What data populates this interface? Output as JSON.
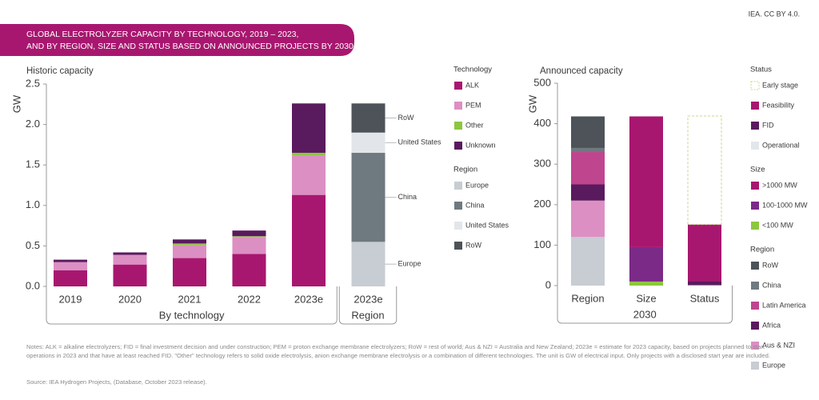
{
  "header": {
    "credit": "IEA. CC BY 4.0.",
    "title_lines": [
      "GLOBAL ELECTROLYZER CAPACITY BY TECHNOLOGY, 2019 – 2023,",
      "AND BY REGION, SIZE AND STATUS BASED ON ANNOUNCED PROJECTS BY 2030"
    ]
  },
  "chart_data": [
    {
      "type": "stacked-bar",
      "title": "Historic capacity",
      "y_label": "GW",
      "ylim": [
        0,
        2.5
      ],
      "yticks": [
        {
          "value": 0,
          "label": "0.0"
        },
        0.5,
        {
          "value": 1,
          "label": "1.0"
        },
        1.5,
        {
          "value": 2,
          "label": "2.0"
        },
        2.5
      ],
      "categories": [
        "2019",
        "2020",
        "2021",
        "2022",
        "2023e",
        "2023e"
      ],
      "x_groups": [
        {
          "label": "By technology",
          "count": 5
        },
        {
          "label": "Region",
          "count": 1
        }
      ],
      "stack_order": "normal",
      "series_groups": [
        {
          "name": "Technology",
          "series": [
            {
              "name": "ALK",
              "color": "#a8176f",
              "values": [
                0.2,
                0.27,
                0.35,
                0.4,
                1.13,
                null
              ]
            },
            {
              "name": "PEM",
              "color": "#dc8fc3",
              "values": [
                0.1,
                0.12,
                0.16,
                0.21,
                0.49,
                null
              ]
            },
            {
              "name": "Other",
              "color": "#8dc63f",
              "values": [
                0,
                0,
                0.02,
                0.01,
                0.03,
                null
              ]
            },
            {
              "name": "Unknown",
              "color": "#5a1a5e",
              "values": [
                0.03,
                0.03,
                0.05,
                0.07,
                0.61,
                null
              ]
            }
          ]
        },
        {
          "name": "Region",
          "inline_labels": true,
          "series": [
            {
              "name": "Europe",
              "color": "#c8ccd3",
              "values": [
                null,
                null,
                null,
                null,
                null,
                0.55
              ]
            },
            {
              "name": "China",
              "color": "#6f7a80",
              "values": [
                null,
                null,
                null,
                null,
                null,
                1.1
              ]
            },
            {
              "name": "United States",
              "color": "#e2e6ea",
              "values": [
                null,
                null,
                null,
                null,
                null,
                0.25
              ]
            },
            {
              "name": "RoW",
              "color": "#4d5359",
              "values": [
                null,
                null,
                null,
                null,
                null,
                0.36
              ]
            }
          ]
        }
      ]
    },
    {
      "type": "stacked-bar",
      "title": "Announced capacity",
      "y_label": "GW",
      "ylim": [
        0,
        500
      ],
      "yticks": [
        0,
        100,
        200,
        300,
        400,
        500
      ],
      "categories": [
        "Region",
        "Size",
        "Status"
      ],
      "x_groups": [
        {
          "label": "2030",
          "count": 3
        }
      ],
      "stack_order": "reverse",
      "series_groups": [
        {
          "name": "Status",
          "series": [
            {
              "name": "Early stage",
              "color": "#c5d98a",
              "pattern": "dashed",
              "values": [
                null,
                null,
                268
              ]
            },
            {
              "name": "Feasibility",
              "color": "#a8176f",
              "values": [
                null,
                null,
                140
              ]
            },
            {
              "name": "FID",
              "color": "#5a1a5e",
              "values": [
                null,
                null,
                10
              ]
            },
            {
              "name": "Operational",
              "color": "#e2e6ea",
              "values": [
                null,
                null,
                1
              ]
            }
          ]
        },
        {
          "name": "Size",
          "series": [
            {
              "name": ">1000 MW",
              "color": "#a8176f",
              "values": [
                null,
                323,
                null
              ]
            },
            {
              "name": "100-1000 MW",
              "color": "#7b2a87",
              "values": [
                null,
                85,
                null
              ]
            },
            {
              "name": "<100 MW",
              "color": "#8dc63f",
              "values": [
                null,
                10,
                null
              ]
            }
          ]
        },
        {
          "name": "Region",
          "series": [
            {
              "name": "RoW",
              "color": "#4d5359",
              "values": [
                78,
                null,
                null
              ]
            },
            {
              "name": "China",
              "color": "#6f7a80",
              "values": [
                10,
                null,
                null
              ]
            },
            {
              "name": "Latin America",
              "color": "#c0458f",
              "values": [
                80,
                null,
                null
              ]
            },
            {
              "name": "Africa",
              "color": "#5a1a5e",
              "values": [
                40,
                null,
                null
              ]
            },
            {
              "name": "Aus & NZI",
              "color": "#dc8fc3",
              "values": [
                90,
                null,
                null
              ]
            },
            {
              "name": "Europe",
              "color": "#c8ccd3",
              "values": [
                120,
                null,
                null
              ]
            }
          ]
        }
      ]
    }
  ],
  "notes": "Notes: ALK = alkaline electrolyzers; FID = final investment decision and under construction; PEM = proton exchange membrane electrolyzers; RoW = rest of world; Aus & NZI = Australia and New Zealand; 2023e = estimate for 2023 capacity, based on projects planned to start operations in 2023 and that have at least reached FID. \"Other\" technology refers to solid oxide electrolysis, anion exchange membrane electrolysis or a combination of different technologies. The unit is GW of electrical input. Only projects with a disclosed start year are included.",
  "source": "Source: IEA Hydrogen Projects, (Database, October 2023 release)."
}
